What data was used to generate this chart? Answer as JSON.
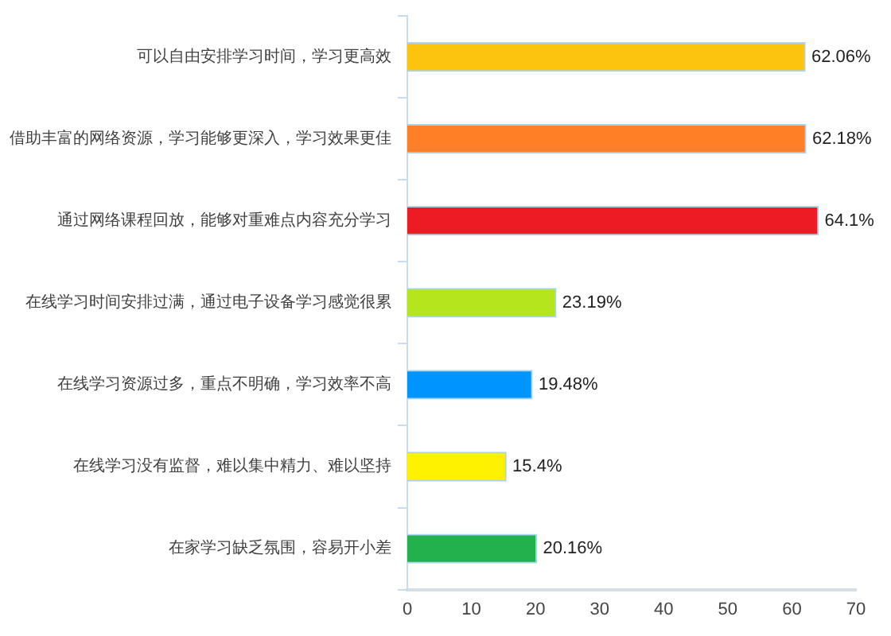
{
  "chart_data": {
    "type": "bar",
    "orientation": "horizontal",
    "categories": [
      "可以自由安排学习时间，学习更高效",
      "借助丰富的网络资源，学习能够更深入，学习效果更佳",
      "通过网络课程回放，能够对重难点内容充分学习",
      "在线学习时间安排过满，通过电子设备学习感觉很累",
      "在线学习资源过多，重点不明确，学习效率不高",
      "在线学习没有监督，难以集中精力、难以坚持",
      "在家学习缺乏氛围，容易开小差"
    ],
    "values": [
      62.06,
      62.18,
      64.1,
      23.19,
      19.48,
      15.4,
      20.16
    ],
    "colors": [
      "#fcc30f",
      "#ff7f27",
      "#ed1c24",
      "#b5e61d",
      "#0094ff",
      "#fff200",
      "#22b14c"
    ],
    "value_labels": [
      "62.06%",
      "62.18%",
      "64.1%",
      "23.19%",
      "19.48%",
      "15.4%",
      "20.16%"
    ],
    "xlim": [
      0,
      70
    ],
    "xticks": [
      0,
      10,
      20,
      30,
      40,
      50,
      60,
      70
    ]
  }
}
